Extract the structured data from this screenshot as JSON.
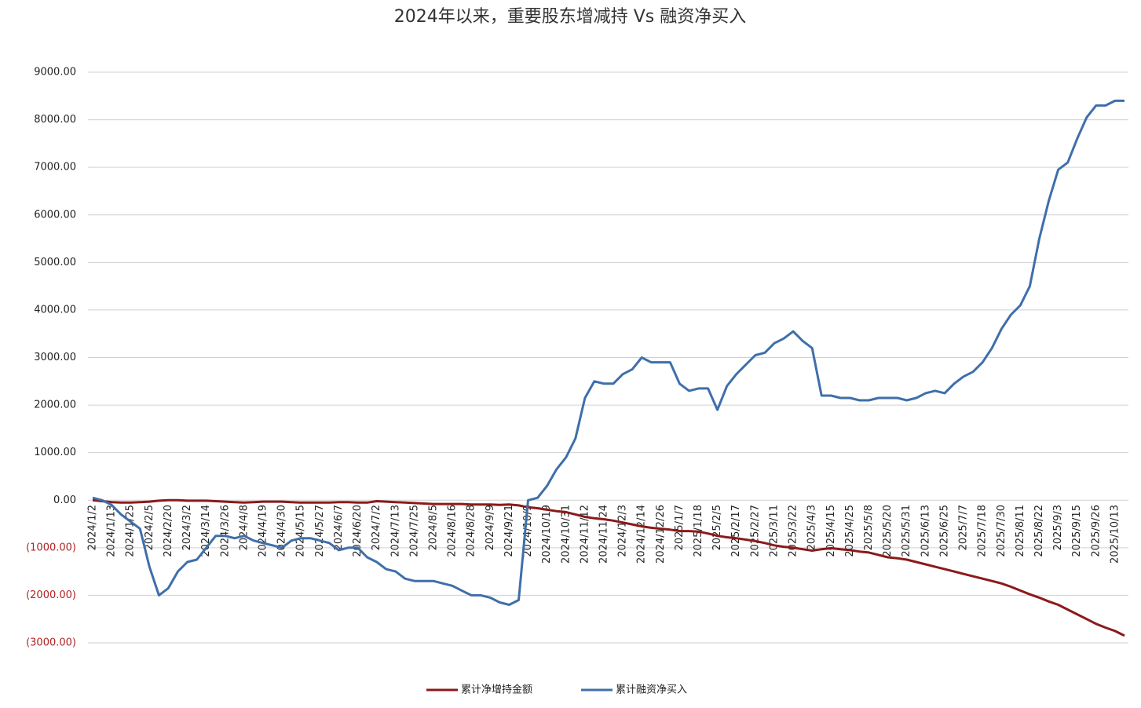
{
  "chart_data": {
    "type": "line",
    "title": "2024年以来，重要股东增减持 Vs 融资净买入",
    "categories": [
      "2024/1/2",
      null,
      "2024/1/13",
      null,
      "2024/1/25",
      null,
      "2024/2/5",
      null,
      "2024/2/20",
      null,
      "2024/3/2",
      null,
      "2024/3/14",
      null,
      "2024/3/26",
      null,
      "2024/4/8",
      null,
      "2024/4/19",
      null,
      "2024/4/30",
      null,
      "2024/5/15",
      null,
      "2024/5/27",
      null,
      "2024/6/7",
      null,
      "2024/6/20",
      null,
      "2024/7/2",
      null,
      "2024/7/13",
      null,
      "2024/7/25",
      null,
      "2024/8/5",
      null,
      "2024/8/16",
      null,
      "2024/8/28",
      null,
      "2024/9/9",
      null,
      "2024/9/21",
      null,
      "2024/10/9",
      null,
      "2024/10/19",
      null,
      "2024/10/31",
      null,
      "2024/11/12",
      null,
      "2024/11/24",
      null,
      "2024/12/3",
      null,
      "2024/12/14",
      null,
      "2024/12/26",
      null,
      "2025/1/7",
      null,
      "2025/1/18",
      null,
      "2025/2/5",
      null,
      "2025/2/17",
      null,
      "2025/2/27",
      null,
      "2025/3/11",
      null,
      "2025/3/22",
      null,
      "2025/4/3",
      null,
      "2025/4/15",
      null,
      "2025/4/25",
      null,
      "2025/5/8",
      null,
      "2025/5/20",
      null,
      "2025/5/31",
      null,
      "2025/6/13",
      null,
      "2025/6/25",
      null,
      "2025/7/7",
      null,
      "2025/7/18",
      null,
      "2025/7/30",
      null,
      "2025/8/11",
      null,
      "2025/8/22",
      null,
      "2025/9/3",
      null,
      "2025/9/15",
      null,
      "2025/9/26",
      null,
      "2025/10/13",
      null
    ],
    "series": [
      {
        "name": "累计净增持金额",
        "color": "#8b1a1a",
        "values": [
          0,
          -20,
          -40,
          -50,
          -50,
          -40,
          -30,
          -10,
          0,
          0,
          -10,
          -10,
          -10,
          -20,
          -30,
          -40,
          -50,
          -40,
          -30,
          -30,
          -30,
          -40,
          -50,
          -50,
          -50,
          -50,
          -40,
          -40,
          -50,
          -50,
          -20,
          -30,
          -40,
          -50,
          -60,
          -70,
          -80,
          -80,
          -80,
          -80,
          -90,
          -90,
          -90,
          -100,
          -90,
          -110,
          -150,
          -170,
          -200,
          -230,
          -250,
          -300,
          -350,
          -380,
          -400,
          -430,
          -470,
          -510,
          -550,
          -580,
          -600,
          -620,
          -650,
          -650,
          -660,
          -700,
          -750,
          -780,
          -800,
          -830,
          -860,
          -900,
          -950,
          -980,
          -1000,
          -1030,
          -1060,
          -1030,
          -1010,
          -1030,
          -1050,
          -1080,
          -1100,
          -1150,
          -1200,
          -1220,
          -1250,
          -1300,
          -1350,
          -1400,
          -1450,
          -1500,
          -1550,
          -1600,
          -1650,
          -1700,
          -1750,
          -1820,
          -1900,
          -1980,
          -2050,
          -2130,
          -2200,
          -2300,
          -2400,
          -2500,
          -2600,
          -2680,
          -2750,
          -2850
        ]
      },
      {
        "name": "累计融资净买入",
        "color": "#3f6faa",
        "values": [
          50,
          0,
          -100,
          -300,
          -450,
          -600,
          -1400,
          -2000,
          -1850,
          -1500,
          -1300,
          -1250,
          -1000,
          -750,
          -750,
          -800,
          -750,
          -850,
          -900,
          -950,
          -1000,
          -850,
          -800,
          -800,
          -850,
          -900,
          -1050,
          -1000,
          -1000,
          -1200,
          -1300,
          -1450,
          -1500,
          -1650,
          -1700,
          -1700,
          -1700,
          -1750,
          -1800,
          -1900,
          -2000,
          -2000,
          -2050,
          -2150,
          -2200,
          -2100,
          0,
          50,
          300,
          650,
          900,
          1300,
          2150,
          2500,
          2450,
          2450,
          2650,
          2750,
          3000,
          2900,
          2900,
          2900,
          2450,
          2300,
          2350,
          2350,
          1900,
          2400,
          2650,
          2850,
          3050,
          3100,
          3300,
          3400,
          3550,
          3350,
          3200,
          2200,
          2200,
          2150,
          2150,
          2100,
          2100,
          2150,
          2150,
          2150,
          2100,
          2150,
          2250,
          2300,
          2250,
          2450,
          2600,
          2700,
          2900,
          3200,
          3600,
          3900,
          4100,
          4500,
          5500,
          6300,
          6950,
          7100,
          7600,
          8050,
          8300,
          8300,
          8400,
          8400
        ]
      }
    ],
    "ylim": [
      -3000,
      9000
    ],
    "yticks": [
      {
        "value": -3000,
        "label": "(3000.00)"
      },
      {
        "value": -2000,
        "label": "(2000.00)"
      },
      {
        "value": -1000,
        "label": "(1000.00)"
      },
      {
        "value": 0,
        "label": "0.00"
      },
      {
        "value": 1000,
        "label": "1000.00"
      },
      {
        "value": 2000,
        "label": "2000.00"
      },
      {
        "value": 3000,
        "label": "3000.00"
      },
      {
        "value": 4000,
        "label": "4000.00"
      },
      {
        "value": 5000,
        "label": "5000.00"
      },
      {
        "value": 6000,
        "label": "6000.00"
      },
      {
        "value": 7000,
        "label": "7000.00"
      },
      {
        "value": 8000,
        "label": "8000.00"
      },
      {
        "value": 9000,
        "label": "9000.00"
      }
    ],
    "grid": true,
    "legend": "bottom"
  }
}
